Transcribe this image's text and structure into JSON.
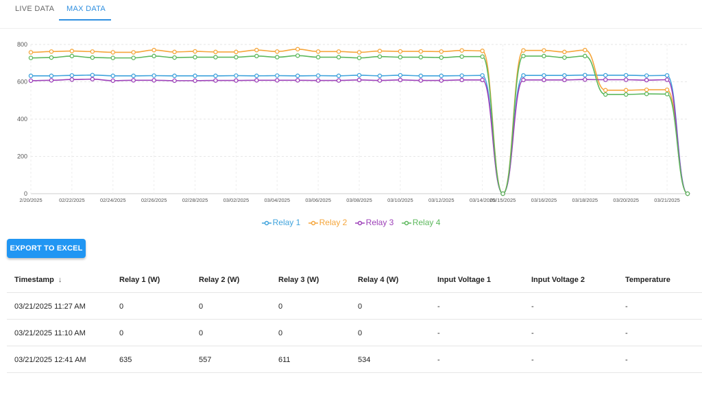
{
  "tabs": [
    {
      "label": "LIVE DATA",
      "active": false
    },
    {
      "label": "MAX DATA",
      "active": true
    }
  ],
  "colors": {
    "accent": "#2f8fe0",
    "relay1": "#3fa3dc",
    "relay2": "#f5a53a",
    "relay3": "#9c3fb8",
    "relay4": "#5cb85c"
  },
  "chart_data": {
    "type": "line",
    "x": [
      "02/20/2025",
      "02/21/2025",
      "02/22/2025",
      "02/23/2025",
      "02/24/2025",
      "02/25/2025",
      "02/26/2025",
      "02/27/2025",
      "02/28/2025",
      "03/01/2025",
      "03/02/2025",
      "03/03/2025",
      "03/04/2025",
      "03/05/2025",
      "03/06/2025",
      "03/07/2025",
      "03/08/2025",
      "03/09/2025",
      "03/10/2025",
      "03/11/2025",
      "03/12/2025",
      "03/13/2025",
      "03/14/2025",
      "03/15/2025",
      "03/15/2025",
      "03/16/2025",
      "03/17/2025",
      "03/18/2025",
      "03/19/2025",
      "03/20/2025",
      "03/21/2025",
      "03/21/2025",
      "03/21/2025"
    ],
    "x_tick_labels": [
      "2/20/2025",
      "02/22/2025",
      "02/24/2025",
      "02/26/2025",
      "02/28/2025",
      "03/02/2025",
      "03/04/2025",
      "03/06/2025",
      "03/08/2025",
      "03/10/2025",
      "03/12/2025",
      "03/14/2025",
      "03/15/2025",
      "03/16/2025",
      "03/18/2025",
      "03/20/2025",
      "03/21/2025"
    ],
    "series": [
      {
        "name": "Relay 1",
        "values": [
          632,
          632,
          634,
          636,
          632,
          632,
          633,
          632,
          632,
          632,
          633,
          632,
          633,
          632,
          633,
          632,
          635,
          632,
          635,
          632,
          632,
          633,
          634,
          0,
          634,
          634,
          634,
          636,
          635,
          635,
          633,
          634,
          0
        ]
      },
      {
        "name": "Relay 2",
        "values": [
          758,
          762,
          765,
          762,
          758,
          758,
          770,
          760,
          763,
          760,
          760,
          770,
          762,
          775,
          762,
          762,
          758,
          765,
          763,
          763,
          762,
          768,
          766,
          0,
          768,
          768,
          760,
          770,
          555,
          555,
          557,
          557,
          0
        ]
      },
      {
        "name": "Relay 3",
        "values": [
          606,
          608,
          612,
          614,
          606,
          608,
          608,
          606,
          606,
          607,
          607,
          608,
          608,
          608,
          607,
          607,
          610,
          607,
          610,
          607,
          607,
          610,
          610,
          0,
          610,
          610,
          610,
          612,
          611,
          611,
          609,
          611,
          0
        ]
      },
      {
        "name": "Relay 4",
        "values": [
          728,
          730,
          738,
          730,
          728,
          728,
          738,
          730,
          732,
          732,
          732,
          738,
          732,
          740,
          732,
          732,
          728,
          735,
          732,
          732,
          730,
          735,
          735,
          0,
          738,
          738,
          730,
          738,
          532,
          532,
          535,
          534,
          0
        ]
      }
    ],
    "ylim": [
      0,
      800
    ],
    "yticks": [
      0,
      200,
      400,
      600,
      800
    ],
    "grid": true,
    "legend_position": "bottom-center",
    "title": "",
    "xlabel": "",
    "ylabel": ""
  },
  "export_label": "EXPORT TO EXCEL",
  "table": {
    "headers": [
      "Timestamp",
      "Relay 1 (W)",
      "Relay 2 (W)",
      "Relay 3 (W)",
      "Relay 4 (W)",
      "Input Voltage 1",
      "Input Voltage 2",
      "Temperature"
    ],
    "sort_icon": "arrow-down-icon",
    "rows": [
      [
        "03/21/2025 11:27 AM",
        "0",
        "0",
        "0",
        "0",
        "-",
        "-",
        "-"
      ],
      [
        "03/21/2025 11:10 AM",
        "0",
        "0",
        "0",
        "0",
        "-",
        "-",
        "-"
      ],
      [
        "03/21/2025 12:41 AM",
        "635",
        "557",
        "611",
        "534",
        "-",
        "-",
        "-"
      ]
    ]
  }
}
